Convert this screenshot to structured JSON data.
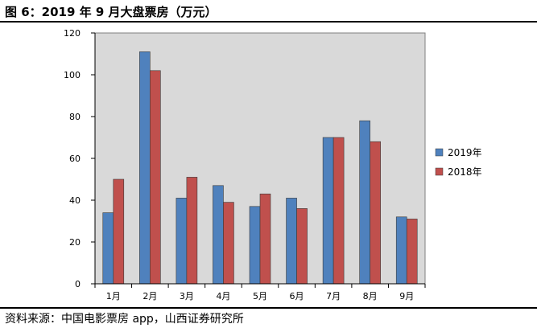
{
  "figure": {
    "title": "图 6：2019 年 9 月大盘票房（万元）",
    "source": "资料来源：中国电影票房 app，山西证券研究所"
  },
  "chart_data": {
    "type": "bar",
    "title": "",
    "xlabel": "",
    "ylabel": "",
    "ylim": [
      0,
      120
    ],
    "yticks": [
      0,
      20,
      40,
      60,
      80,
      100,
      120
    ],
    "grid": false,
    "legend_position": "right",
    "plot_background": "#d9d9d9",
    "categories": [
      "1月",
      "2月",
      "3月",
      "4月",
      "5月",
      "6月",
      "7月",
      "8月",
      "9月"
    ],
    "series": [
      {
        "name": "2019年",
        "color": "#4f81bd",
        "values": [
          34,
          111,
          41,
          47,
          37,
          41,
          70,
          78,
          32
        ]
      },
      {
        "name": "2018年",
        "color": "#c0504d",
        "values": [
          50,
          102,
          51,
          39,
          43,
          36,
          70,
          68,
          31
        ]
      }
    ]
  }
}
